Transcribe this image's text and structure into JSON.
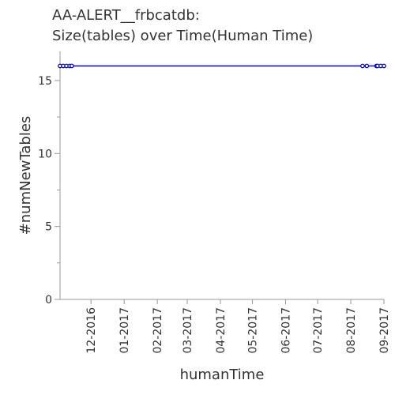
{
  "chart_data": {
    "type": "line",
    "title": [
      "AA-ALERT__frbcatdb:",
      "Size(tables) over Time(Human Time)"
    ],
    "xlabel": "humanTime",
    "ylabel": "#numNewTables",
    "x_range": [
      "2016-11-02",
      "2017-09-01"
    ],
    "y_range": [
      0,
      17
    ],
    "y_ticks": [
      0,
      5,
      10,
      15
    ],
    "x_ticks": [
      {
        "date": "2016-12-01",
        "label": "12-2016"
      },
      {
        "date": "2017-01-01",
        "label": "01-2017"
      },
      {
        "date": "2017-02-01",
        "label": "02-2017"
      },
      {
        "date": "2017-03-01",
        "label": "03-2017"
      },
      {
        "date": "2017-04-01",
        "label": "04-2017"
      },
      {
        "date": "2017-05-01",
        "label": "05-2017"
      },
      {
        "date": "2017-06-01",
        "label": "06-2017"
      },
      {
        "date": "2017-07-01",
        "label": "07-2017"
      },
      {
        "date": "2017-08-01",
        "label": "08-2017"
      },
      {
        "date": "2017-09-01",
        "label": "09-2017"
      }
    ],
    "series": [
      {
        "color": "#0000cc",
        "points": [
          {
            "x": "2016-11-02",
            "y": 16
          },
          {
            "x": "2016-11-05",
            "y": 16
          },
          {
            "x": "2016-11-08",
            "y": 16
          },
          {
            "x": "2016-11-11",
            "y": 16
          },
          {
            "x": "2016-11-13",
            "y": 16
          },
          {
            "x": "2017-08-12",
            "y": 16
          },
          {
            "x": "2017-08-16",
            "y": 16
          },
          {
            "x": "2017-08-25",
            "y": 16
          },
          {
            "x": "2017-08-26",
            "y": 16
          },
          {
            "x": "2017-08-29",
            "y": 16
          },
          {
            "x": "2017-09-01",
            "y": 16
          }
        ]
      }
    ],
    "grid": false,
    "legend": "none"
  }
}
